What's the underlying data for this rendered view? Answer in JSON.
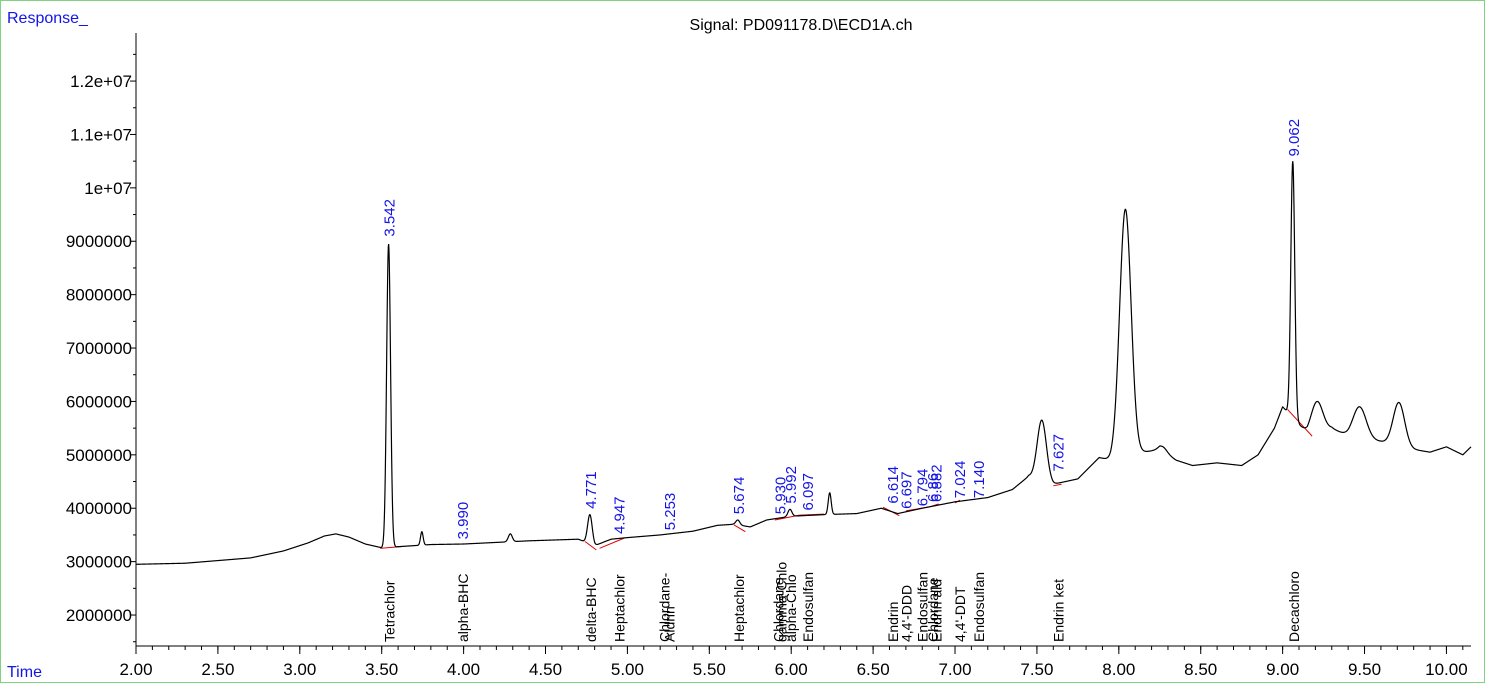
{
  "chart_data": {
    "type": "line",
    "title": "Signal: PD091178.D\\ECD1A.ch",
    "ylabel": "Response_",
    "xlabel": "Time",
    "xlim": [
      2.0,
      10.15
    ],
    "ylim": [
      1420000,
      12900000
    ],
    "grid": false,
    "x_ticks": [
      {
        "v": 2.0,
        "label": "2.00"
      },
      {
        "v": 2.5,
        "label": "2.50"
      },
      {
        "v": 3.0,
        "label": "3.00"
      },
      {
        "v": 3.5,
        "label": "3.50"
      },
      {
        "v": 4.0,
        "label": "4.00"
      },
      {
        "v": 4.5,
        "label": "4.50"
      },
      {
        "v": 5.0,
        "label": "5.00"
      },
      {
        "v": 5.5,
        "label": "5.50"
      },
      {
        "v": 6.0,
        "label": "6.00"
      },
      {
        "v": 6.5,
        "label": "6.50"
      },
      {
        "v": 7.0,
        "label": "7.00"
      },
      {
        "v": 7.5,
        "label": "7.50"
      },
      {
        "v": 8.0,
        "label": "8.00"
      },
      {
        "v": 8.5,
        "label": "8.50"
      },
      {
        "v": 9.0,
        "label": "9.00"
      },
      {
        "v": 9.5,
        "label": "9.50"
      },
      {
        "v": 10.0,
        "label": "10.00"
      }
    ],
    "y_ticks": [
      {
        "v": 2000000,
        "label": "2000000"
      },
      {
        "v": 3000000,
        "label": "3000000"
      },
      {
        "v": 4000000,
        "label": "4000000"
      },
      {
        "v": 5000000,
        "label": "5000000"
      },
      {
        "v": 6000000,
        "label": "6000000"
      },
      {
        "v": 7000000,
        "label": "7000000"
      },
      {
        "v": 8000000,
        "label": "8000000"
      },
      {
        "v": 9000000,
        "label": "9000000"
      },
      {
        "v": 10000000,
        "label": "1e+07"
      },
      {
        "v": 11000000,
        "label": "1.1e+07"
      },
      {
        "v": 12000000,
        "label": "1.2e+07"
      }
    ],
    "trace_baseline": [
      [
        2.0,
        2950000
      ],
      [
        2.3,
        2970000
      ],
      [
        2.5,
        3020000
      ],
      [
        2.7,
        3070000
      ],
      [
        2.9,
        3200000
      ],
      [
        3.05,
        3350000
      ],
      [
        3.15,
        3480000
      ],
      [
        3.22,
        3520000
      ],
      [
        3.3,
        3460000
      ],
      [
        3.4,
        3330000
      ],
      [
        3.5,
        3260000
      ],
      [
        3.6,
        3280000
      ],
      [
        3.8,
        3320000
      ],
      [
        4.0,
        3330000
      ],
      [
        4.2,
        3360000
      ],
      [
        4.4,
        3390000
      ],
      [
        4.6,
        3410000
      ],
      [
        4.7,
        3420000
      ],
      [
        4.8,
        3300000
      ],
      [
        4.9,
        3420000
      ],
      [
        5.0,
        3450000
      ],
      [
        5.2,
        3500000
      ],
      [
        5.4,
        3570000
      ],
      [
        5.55,
        3680000
      ],
      [
        5.65,
        3700000
      ],
      [
        5.75,
        3650000
      ],
      [
        5.85,
        3780000
      ],
      [
        6.0,
        3850000
      ],
      [
        6.2,
        3880000
      ],
      [
        6.4,
        3900000
      ],
      [
        6.55,
        4000000
      ],
      [
        6.65,
        3900000
      ],
      [
        6.8,
        4000000
      ],
      [
        7.0,
        4120000
      ],
      [
        7.2,
        4200000
      ],
      [
        7.35,
        4350000
      ],
      [
        7.45,
        4600000
      ],
      [
        7.6,
        4450000
      ],
      [
        7.75,
        4550000
      ],
      [
        7.88,
        4950000
      ],
      [
        7.95,
        4900000
      ],
      [
        8.15,
        5050000
      ],
      [
        8.25,
        5100000
      ],
      [
        8.35,
        4900000
      ],
      [
        8.45,
        4800000
      ],
      [
        8.6,
        4850000
      ],
      [
        8.75,
        4800000
      ],
      [
        8.85,
        5000000
      ],
      [
        8.95,
        5500000
      ],
      [
        9.0,
        5900000
      ],
      [
        9.15,
        5400000
      ],
      [
        9.3,
        5500000
      ],
      [
        9.4,
        5350000
      ],
      [
        9.6,
        5250000
      ],
      [
        9.8,
        5100000
      ],
      [
        9.9,
        5050000
      ],
      [
        10.0,
        5150000
      ],
      [
        10.1,
        5000000
      ],
      [
        10.15,
        5150000
      ]
    ],
    "peaks": [
      {
        "x": 3.542,
        "height": 8950000,
        "width": 0.012
      },
      {
        "x": 3.745,
        "height": 3560000,
        "width": 0.008
      },
      {
        "x": 4.285,
        "height": 3520000,
        "width": 0.012
      },
      {
        "x": 4.771,
        "height": 3880000,
        "width": 0.014
      },
      {
        "x": 5.674,
        "height": 3780000,
        "width": 0.012
      },
      {
        "x": 5.992,
        "height": 3980000,
        "width": 0.012
      },
      {
        "x": 6.235,
        "height": 4290000,
        "width": 0.009
      },
      {
        "x": 7.53,
        "height": 5650000,
        "width": 0.028
      },
      {
        "x": 8.04,
        "height": 9600000,
        "width": 0.035
      },
      {
        "x": 8.27,
        "height": 5150000,
        "width": 0.025
      },
      {
        "x": 9.062,
        "height": 10500000,
        "width": 0.012
      },
      {
        "x": 9.21,
        "height": 6000000,
        "width": 0.035
      },
      {
        "x": 9.47,
        "height": 5900000,
        "width": 0.04
      },
      {
        "x": 9.71,
        "height": 5980000,
        "width": 0.035
      }
    ],
    "integration_baselines": [
      [
        [
          3.49,
          3250000
        ],
        [
          3.62,
          3280000
        ]
      ],
      [
        [
          4.74,
          3380000
        ],
        [
          4.81,
          3220000
        ]
      ],
      [
        [
          4.83,
          3250000
        ],
        [
          4.98,
          3440000
        ]
      ],
      [
        [
          5.65,
          3690000
        ],
        [
          5.72,
          3560000
        ]
      ],
      [
        [
          5.9,
          3780000
        ],
        [
          6.05,
          3870000
        ]
      ],
      [
        [
          6.05,
          3870000
        ],
        [
          6.2,
          3890000
        ]
      ],
      [
        [
          6.56,
          4020000
        ],
        [
          6.66,
          3860000
        ]
      ],
      [
        [
          6.7,
          3950000
        ],
        [
          6.85,
          4030000
        ]
      ],
      [
        [
          6.85,
          4030000
        ],
        [
          6.9,
          4080000
        ]
      ],
      [
        [
          7.0,
          4100000
        ],
        [
          7.03,
          4150000
        ]
      ],
      [
        [
          7.6,
          4420000
        ],
        [
          7.65,
          4450000
        ]
      ],
      [
        [
          9.03,
          5850000
        ],
        [
          9.18,
          5350000
        ]
      ]
    ],
    "peak_labels": [
      {
        "x": 3.542,
        "y": 9050000,
        "text": "3.542"
      },
      {
        "x": 3.99,
        "y": 3380000,
        "text": "3.990"
      },
      {
        "x": 4.771,
        "y": 3950000,
        "text": "4.771"
      },
      {
        "x": 4.947,
        "y": 3480000,
        "text": "4.947"
      },
      {
        "x": 5.253,
        "y": 3550000,
        "text": "5.253"
      },
      {
        "x": 5.674,
        "y": 3850000,
        "text": "5.674"
      },
      {
        "x": 5.93,
        "y": 3850000,
        "text": "5.930"
      },
      {
        "x": 5.992,
        "y": 4050000,
        "text": "5.992"
      },
      {
        "x": 6.097,
        "y": 3920000,
        "text": "6.097"
      },
      {
        "x": 6.614,
        "y": 4050000,
        "text": "6.614"
      },
      {
        "x": 6.697,
        "y": 3950000,
        "text": "6.697"
      },
      {
        "x": 6.794,
        "y": 4000000,
        "text": "6.794"
      },
      {
        "x": 6.86,
        "y": 4080000,
        "text": "6.86"
      },
      {
        "x": 6.88,
        "y": 4080000,
        "text": "6.882"
      },
      {
        "x": 7.024,
        "y": 4150000,
        "text": "7.024"
      },
      {
        "x": 7.14,
        "y": 4150000,
        "text": "7.140"
      },
      {
        "x": 7.627,
        "y": 4650000,
        "text": "7.627"
      },
      {
        "x": 9.062,
        "y": 10550000,
        "text": "9.062"
      }
    ],
    "compound_labels": [
      {
        "x": 3.542,
        "text": "Tetrachlor"
      },
      {
        "x": 3.99,
        "text": "alpha-BHC"
      },
      {
        "x": 4.771,
        "text": "delta-BHC"
      },
      {
        "x": 4.947,
        "text": "Heptachlor"
      },
      {
        "x": 5.22,
        "text": "Chlordane-"
      },
      {
        "x": 5.25,
        "text": "Aldrin"
      },
      {
        "x": 5.674,
        "text": "Heptachlor"
      },
      {
        "x": 5.915,
        "text": "Chlordane"
      },
      {
        "x": 5.935,
        "text": "gamma-Chlo"
      },
      {
        "x": 5.992,
        "text": "alpha-Chlo"
      },
      {
        "x": 6.097,
        "text": "Endosulfan"
      },
      {
        "x": 6.614,
        "text": "Endrin"
      },
      {
        "x": 6.697,
        "text": "4,4'-DDD"
      },
      {
        "x": 6.794,
        "text": "Endosulfan"
      },
      {
        "x": 6.86,
        "text": "Chlordane"
      },
      {
        "x": 6.88,
        "text": "Endrin ald"
      },
      {
        "x": 7.024,
        "text": "4,4'-DDT"
      },
      {
        "x": 7.14,
        "text": "Endosulfan"
      },
      {
        "x": 7.627,
        "text": "Endrin ket"
      },
      {
        "x": 9.062,
        "text": "Decachloro"
      }
    ],
    "colors": {
      "trace": "#000000",
      "baseline": "#e00000",
      "peak_label": "#1414e6",
      "axis_title": "#1414e6",
      "border": "#7fd27f"
    }
  }
}
